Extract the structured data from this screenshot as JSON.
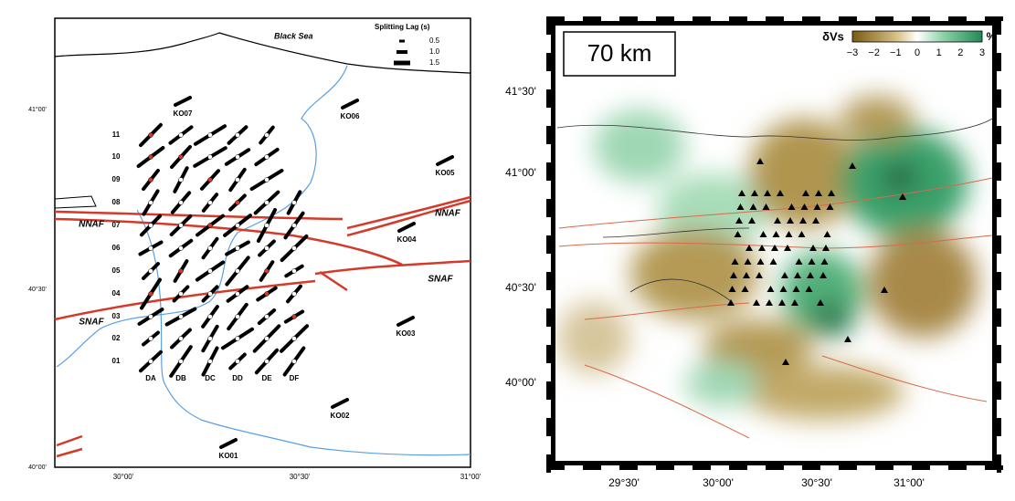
{
  "left_map": {
    "sea_label": "Black Sea",
    "legend": {
      "title": "Splitting Lag (s)",
      "entries": [
        "0.5",
        "1.0",
        "1.5"
      ]
    },
    "lat_labels": [
      "41°00'",
      "40°30'",
      "40°00'"
    ],
    "lon_labels": [
      "30°00'",
      "30°30'",
      "31°00'"
    ],
    "stations": [
      "KO07",
      "KO06",
      "KO05",
      "KO04",
      "KO03",
      "KO02",
      "KO01"
    ],
    "rows": [
      "11",
      "10",
      "09",
      "08",
      "07",
      "06",
      "05",
      "04",
      "03",
      "02",
      "01"
    ],
    "columns": [
      "DA",
      "DB",
      "DC",
      "DD",
      "DE",
      "DF"
    ],
    "faults": [
      "NNAF",
      "NNAF",
      "SNAF",
      "SNAF"
    ]
  },
  "right_map": {
    "depth_label": "70 km",
    "colorbar": {
      "label": "δVs",
      "unit": "%",
      "ticks": [
        "−3",
        "−2",
        "−1",
        "0",
        "1",
        "2",
        "3"
      ]
    },
    "lat_labels": [
      "41°30'",
      "41°00'",
      "40°30'",
      "40°00'"
    ],
    "lon_labels": [
      "29°30'",
      "30°00'",
      "30°30'",
      "31°00'"
    ]
  }
}
